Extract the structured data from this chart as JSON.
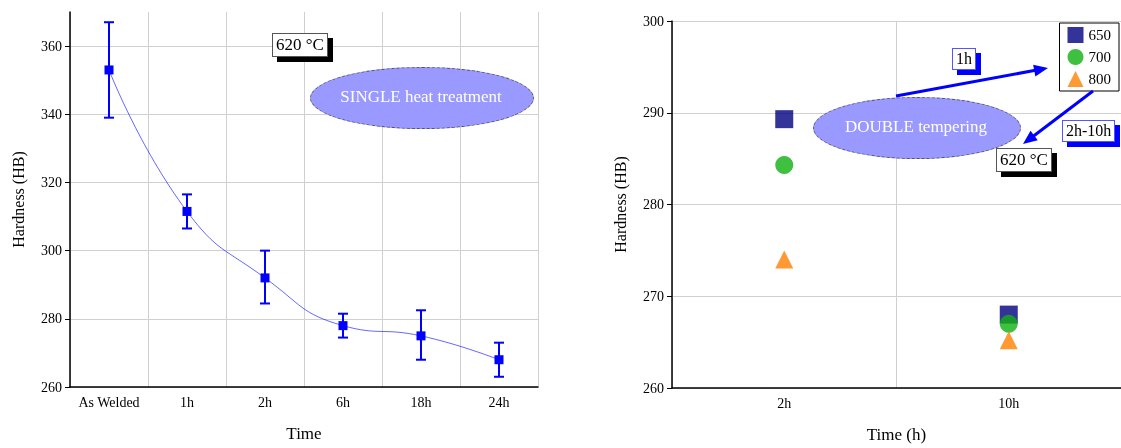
{
  "chart_data": [
    {
      "type": "line",
      "xlabel": "Time",
      "ylabel": "Hardness (HB)",
      "categories": [
        "As Welded",
        "1h",
        "2h",
        "6h",
        "18h",
        "24h"
      ],
      "series": [
        {
          "color": "#0000ff",
          "values": [
            353,
            311.5,
            292,
            278,
            275,
            268
          ],
          "errors": [
            [
              339,
              367
            ],
            [
              306.5,
              316.5
            ],
            [
              284.5,
              300
            ],
            [
              274.5,
              281.5
            ],
            [
              268,
              282.5
            ],
            [
              263,
              273
            ]
          ]
        }
      ],
      "ylim": [
        260,
        370
      ],
      "yticks": [
        260,
        280,
        300,
        320,
        340,
        360
      ],
      "grid": true,
      "marker": "square",
      "line_style": "solid",
      "annotations": [
        "620 °C",
        "SINGLE heat treatment"
      ]
    },
    {
      "type": "scatter",
      "xlabel": "Time (h)",
      "ylabel": "Hardness (HB)",
      "categories": [
        "2h",
        "10h"
      ],
      "series": [
        {
          "name": "650",
          "color": "#000080",
          "marker": "square",
          "values": [
            289.3,
            268
          ]
        },
        {
          "name": "700",
          "color": "#10b010",
          "marker": "circle",
          "values": [
            284.3,
            267
          ]
        },
        {
          "name": "800",
          "color": "#ff7f00",
          "marker": "triangle",
          "values": [
            274,
            265.2
          ]
        }
      ],
      "ylim": [
        260,
        300
      ],
      "yticks": [
        260,
        270,
        280,
        290,
        300
      ],
      "grid": true,
      "legend": "top right",
      "annotations": [
        "1h",
        "DOUBLE tempering",
        "2h-10h",
        "620 °C"
      ]
    }
  ]
}
